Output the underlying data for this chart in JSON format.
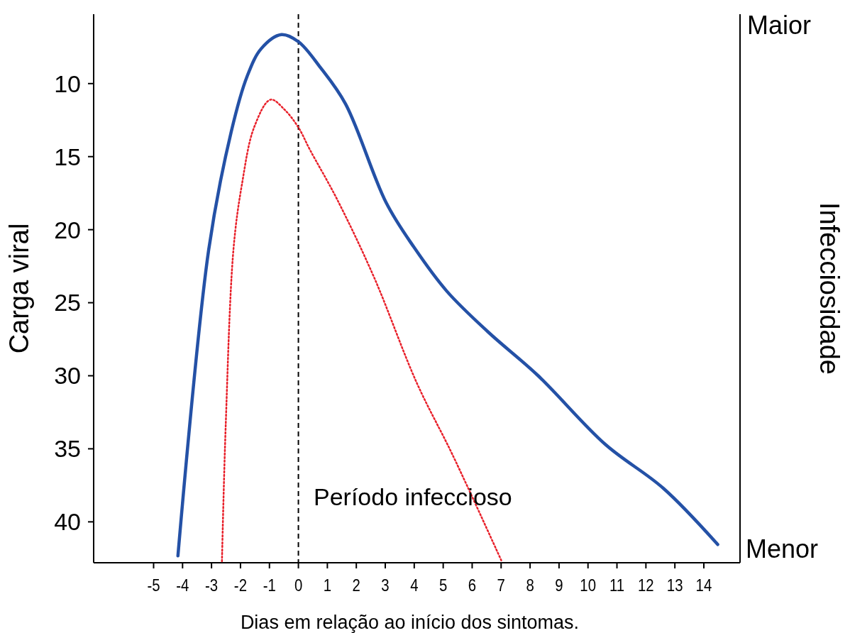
{
  "chart_data": {
    "type": "line",
    "xlabel": "Dias em relação ao início dos sintomas.",
    "ylabel": "Carga viral",
    "y2label": "Infecciosidade",
    "xlim": [
      -7.07,
      15.25
    ],
    "xticks": [
      -5,
      -4,
      -3,
      -2,
      -1,
      0,
      1,
      2,
      3,
      4,
      5,
      6,
      7,
      8,
      9,
      10,
      11,
      12,
      13,
      14
    ],
    "ylim": [
      42.8,
      5.25
    ],
    "yticks": [
      10,
      15,
      20,
      25,
      30,
      35,
      40
    ],
    "grid": false,
    "series": [
      {
        "color": "#2451a6",
        "line_style": "solid",
        "x": [
          -4.16,
          -3.1,
          -2.32,
          -1.77,
          -1.28,
          -0.59,
          0,
          0.76,
          1.63,
          3.03,
          3.99,
          5.12,
          6.55,
          8.28,
          10.6,
          12.6,
          14.48
        ],
        "values": [
          42.33,
          21.41,
          13.3,
          9.5,
          7.6,
          6.65,
          7.13,
          8.9,
          11.4,
          18.15,
          21.2,
          24.2,
          27.0,
          30.0,
          34.7,
          37.7,
          41.55
        ]
      },
      {
        "color": "#e8202a",
        "line_style": "dotted",
        "x": [
          -2.64,
          -2.51,
          -2.24,
          -1.95,
          -1.53,
          -0.96,
          -0.47,
          0,
          0.39,
          1.33,
          2.61,
          4.09,
          5.32,
          7.02
        ],
        "values": [
          42.7,
          33.4,
          21.3,
          16.9,
          13.0,
          11.1,
          11.8,
          13.0,
          14.5,
          17.9,
          23.25,
          30.5,
          35.4,
          42.7
        ]
      }
    ],
    "ref_lines": [
      {
        "axis": "x",
        "value": 0,
        "color": "#000000",
        "line_style": "dashed"
      }
    ],
    "annotations": [
      "Período infeccioso",
      "Maior",
      "Menor"
    ]
  }
}
